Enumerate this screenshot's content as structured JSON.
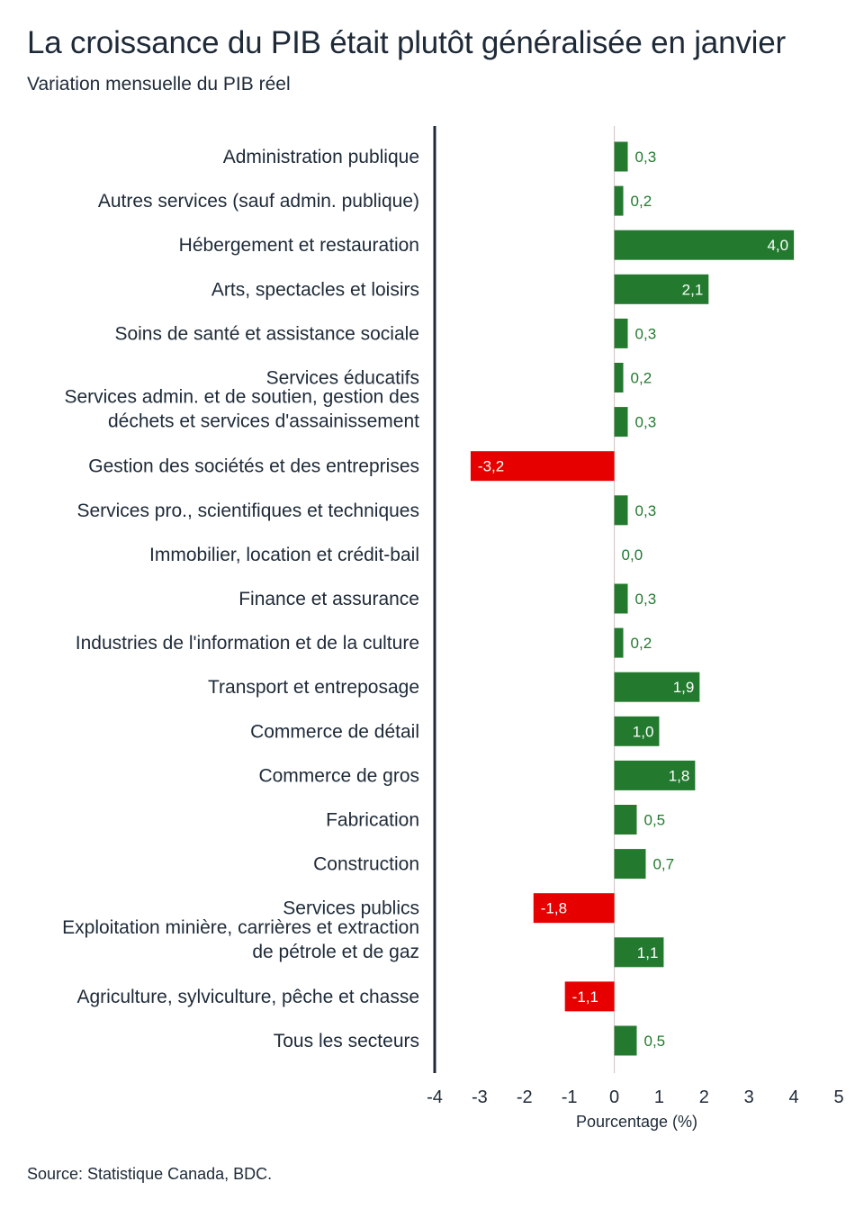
{
  "title": "La croissance du PIB était plutôt généralisée en janvier",
  "subtitle": "Variation mensuelle du PIB réel",
  "source": "Source: Statistique Canada, BDC.",
  "colors": {
    "positive": "#237a2f",
    "negative": "#e60000",
    "positive_text": "#237a2f",
    "axis": "#1e2a38",
    "zero_line": "#d8c8c8"
  },
  "chart_data": {
    "type": "bar",
    "orientation": "horizontal",
    "xlabel": "Pourcentage (%)",
    "ylabel": "",
    "xlim": [
      -4,
      5
    ],
    "xticks": [
      "-4",
      "-3",
      "-2",
      "-1",
      "0",
      "1",
      "2",
      "3",
      "4",
      "5"
    ],
    "categories": [
      [
        "Administration publique"
      ],
      [
        "Autres services (sauf admin. publique)"
      ],
      [
        "Hébergement et restauration"
      ],
      [
        "Arts, spectacles et loisirs"
      ],
      [
        "Soins de santé et assistance sociale"
      ],
      [
        "Services éducatifs"
      ],
      [
        "Services admin. et de soutien, gestion des",
        "déchets et services d'assainissement"
      ],
      [
        "Gestion des sociétés et des entreprises"
      ],
      [
        "Services pro., scientifiques et techniques"
      ],
      [
        "Immobilier, location et crédit-bail"
      ],
      [
        "Finance et assurance"
      ],
      [
        "Industries de l'information et de la culture"
      ],
      [
        "Transport et entreposage"
      ],
      [
        "Commerce de détail"
      ],
      [
        "Commerce de gros"
      ],
      [
        "Fabrication"
      ],
      [
        "Construction"
      ],
      [
        "Services publics"
      ],
      [
        "Exploitation minière, carrières et extraction",
        "de pétrole et de gaz"
      ],
      [
        "Agriculture, sylviculture, pêche et chasse"
      ],
      [
        "Tous les secteurs"
      ]
    ],
    "values": [
      0.3,
      0.2,
      4.0,
      2.1,
      0.3,
      0.2,
      0.3,
      -3.2,
      0.3,
      0.0,
      0.3,
      0.2,
      1.9,
      1.0,
      1.8,
      0.5,
      0.7,
      -1.8,
      1.1,
      -1.1,
      0.5
    ],
    "value_labels": [
      "0,3",
      "0,2",
      "4,0",
      "2,1",
      "0,3",
      "0,2",
      "0,3",
      "-3,2",
      "0,3",
      "0,0",
      "0,3",
      "0,2",
      "1,9",
      "1,0",
      "1,8",
      "0,5",
      "0,7",
      "-1,8",
      "1,1",
      "-1,1",
      "0,5"
    ],
    "grid": false,
    "legend": "none"
  }
}
